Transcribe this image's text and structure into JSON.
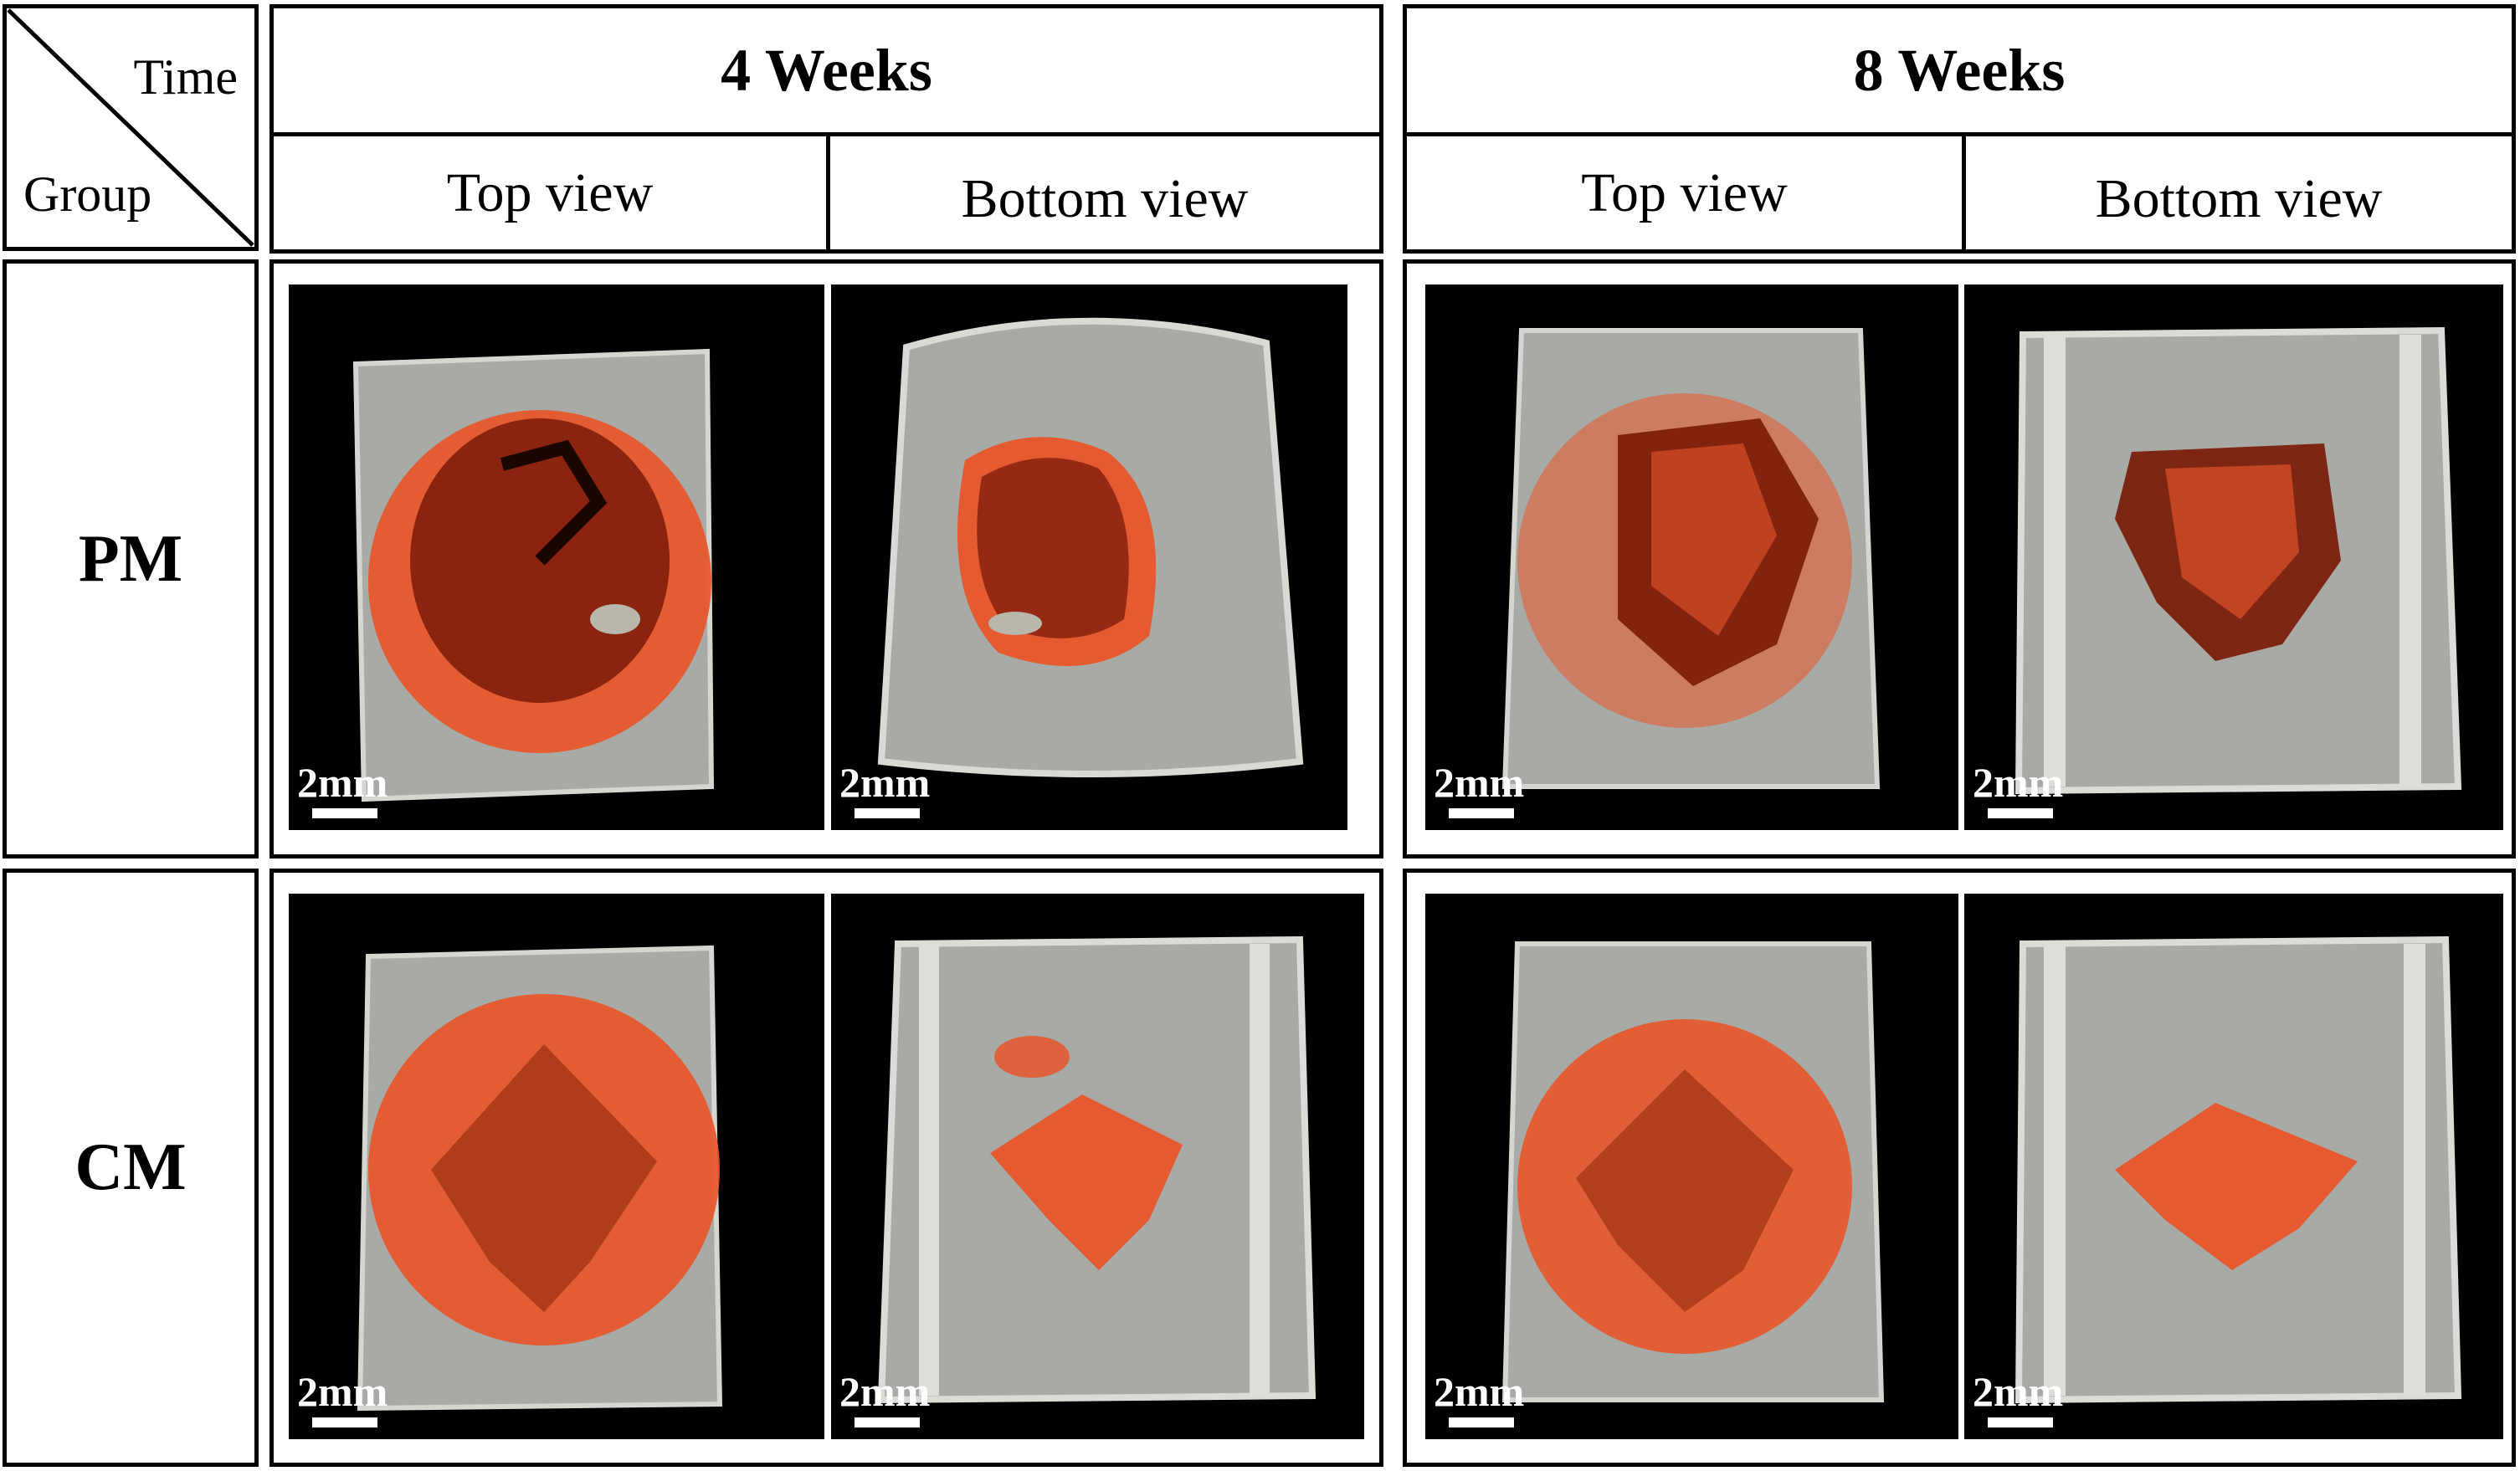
{
  "header": {
    "corner": {
      "top_right": "Time",
      "bottom_left": "Group"
    },
    "weeks": [
      {
        "title": "4 Weeks",
        "views": [
          "Top view",
          "Bottom view"
        ]
      },
      {
        "title": "8 Weeks",
        "views": [
          "Top view",
          "Bottom view"
        ]
      }
    ]
  },
  "groups": [
    {
      "label": "PM"
    },
    {
      "label": "CM"
    }
  ],
  "scale_bar_label": "2mm",
  "colors": {
    "bone": "#a8aba5",
    "bone_edge": "#d8dbd4",
    "scaffold": "#e8552a",
    "scaffold_dark": "#7a1a08",
    "background": "#000000"
  }
}
